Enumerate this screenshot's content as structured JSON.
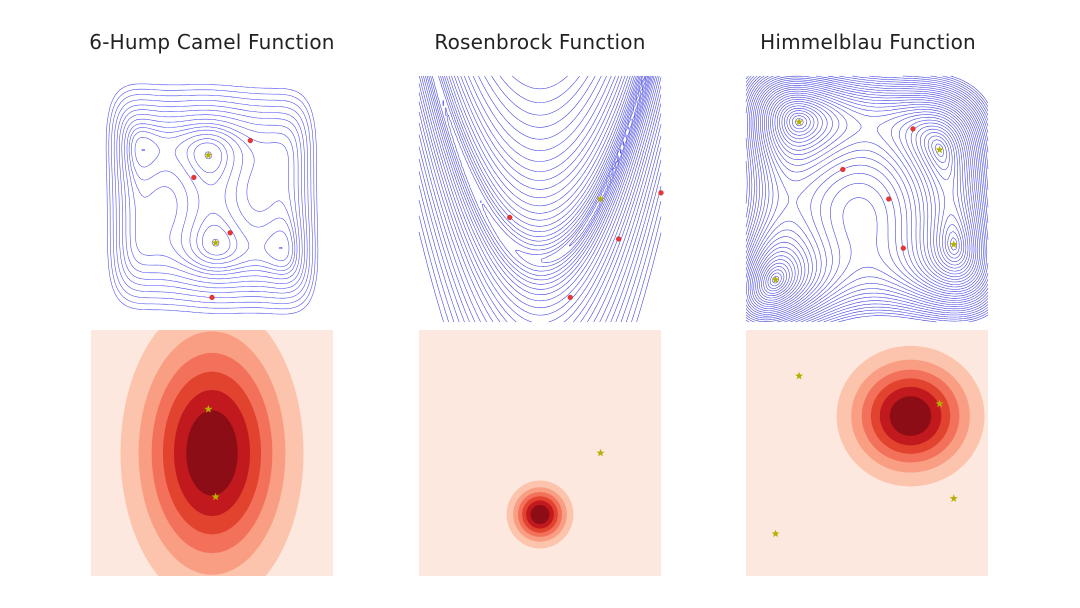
{
  "chart_data": [
    {
      "type": "contour",
      "title": "6-Hump Camel Function",
      "xlim": [
        -3,
        3
      ],
      "ylim": [
        -2,
        2
      ],
      "levels": [
        -1,
        -0.6,
        -0.2,
        0.4,
        1.2,
        2,
        3,
        4.5,
        6.5,
        9,
        12,
        16,
        21,
        27,
        34
      ],
      "line_color": "#3333ee",
      "optima": [
        [
          0.0898,
          -0.7126
        ],
        [
          -0.0898,
          0.7126
        ]
      ],
      "samples": [
        [
          0.95,
          0.95
        ],
        [
          -0.45,
          0.35
        ],
        [
          0.45,
          -0.55
        ],
        [
          0.0,
          -1.6
        ]
      ],
      "sample_color": "#ee3333",
      "optimum_color": "#b5b000"
    },
    {
      "type": "contour",
      "title": "Rosenbrock Function",
      "xlim": [
        -2,
        2
      ],
      "ylim": [
        -1,
        3
      ],
      "levels": [
        0.3,
        1,
        2,
        4,
        7,
        11,
        16,
        23,
        32,
        44,
        60,
        80,
        105,
        135,
        170,
        210,
        260,
        320,
        390,
        470,
        560,
        660,
        780,
        920,
        1080,
        1260
      ],
      "line_color": "#2222dd",
      "optima": [
        [
          1,
          1
        ]
      ],
      "samples": [
        [
          2.0,
          1.1
        ],
        [
          -0.5,
          0.7
        ],
        [
          1.3,
          0.35
        ],
        [
          0.5,
          -0.6
        ]
      ],
      "sample_color": "#ee3333",
      "optimum_color": "#b5b000"
    },
    {
      "type": "contour",
      "title": "Himmelblau Function",
      "xlim": [
        -5,
        5
      ],
      "ylim": [
        -5,
        5
      ],
      "levels": [
        1,
        3,
        6,
        10,
        15,
        21,
        28,
        36,
        45,
        55,
        66,
        78,
        91,
        105,
        120,
        136,
        153,
        171,
        190,
        210,
        232,
        255,
        280,
        306,
        334,
        363,
        394,
        426,
        460,
        496
      ],
      "line_color": "#2222dd",
      "optima": [
        [
          3,
          2
        ],
        [
          -2.805118,
          3.131312
        ],
        [
          -3.77931,
          -3.283186
        ],
        [
          3.584428,
          -1.848126
        ]
      ],
      "samples": [
        [
          1.9,
          2.85
        ],
        [
          -1.0,
          1.2
        ],
        [
          1.5,
          -2.0
        ],
        [
          0.9,
          0.0
        ]
      ],
      "sample_color": "#ee3333",
      "optimum_color": "#b5b000"
    },
    {
      "type": "filled_contour",
      "xlim": [
        -3,
        3
      ],
      "ylim": [
        -2,
        2
      ],
      "cmap": "Reds",
      "bands": 7,
      "peak": [
        0.0,
        0.0
      ],
      "spread": [
        1.15,
        1.25
      ],
      "optima": [
        [
          0.0898,
          -0.7126
        ],
        [
          -0.0898,
          0.7126
        ]
      ],
      "optimum_color": "#b5b000"
    },
    {
      "type": "filled_contour",
      "xlim": [
        -2,
        2
      ],
      "ylim": [
        -1,
        3
      ],
      "cmap": "Reds",
      "bands": 7,
      "peak": [
        0.0,
        0.0
      ],
      "spread": [
        0.28,
        0.28
      ],
      "optima": [
        [
          1,
          1
        ]
      ],
      "optimum_color": "#b5b000"
    },
    {
      "type": "filled_contour",
      "xlim": [
        -5,
        5
      ],
      "ylim": [
        -5,
        5
      ],
      "cmap": "Reds",
      "bands": 7,
      "peak": [
        1.8,
        1.5
      ],
      "spread": [
        1.55,
        1.45
      ],
      "optima": [
        [
          3,
          2
        ],
        [
          -2.805118,
          3.131312
        ],
        [
          -3.77931,
          -3.283186
        ],
        [
          3.584428,
          -1.848126
        ]
      ],
      "optimum_color": "#b5b000"
    }
  ]
}
